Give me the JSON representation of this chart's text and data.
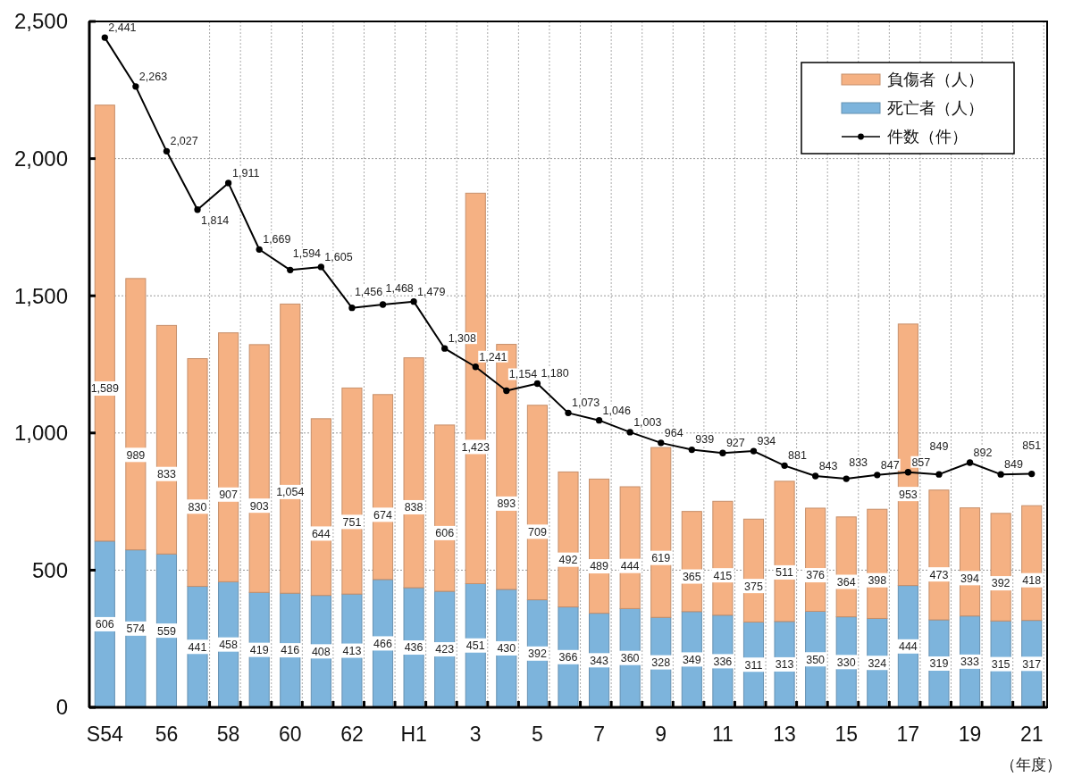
{
  "chart_data": {
    "type": "bar",
    "stacked": true,
    "xlabel": "（年度）",
    "categories": [
      "S54",
      null,
      "56",
      null,
      "58",
      null,
      "60",
      null,
      "62",
      null,
      "H1",
      null,
      "3",
      null,
      "5",
      null,
      "7",
      null,
      "9",
      null,
      "11",
      null,
      "13",
      null,
      "15",
      null,
      "17",
      null,
      "19",
      null,
      "21"
    ],
    "ylim": [
      0,
      2500
    ],
    "yticks": [
      0,
      500,
      {
        "value": 1000,
        "label": "1,000"
      },
      {
        "value": 1500,
        "label": "1,500"
      },
      {
        "value": 2000,
        "label": "2,000"
      },
      {
        "value": 2500,
        "label": "2,500"
      }
    ],
    "grid": true,
    "legend": "top right",
    "marker": "circle",
    "series": [
      {
        "name": "死亡者（人）",
        "color": "#7db4dc",
        "values": [
          606,
          574,
          559,
          441,
          458,
          419,
          416,
          408,
          413,
          466,
          436,
          423,
          451,
          430,
          392,
          366,
          343,
          360,
          328,
          349,
          336,
          311,
          313,
          350,
          330,
          324,
          444,
          319,
          333,
          315,
          317
        ],
        "value_labels": [
          "606",
          "574",
          "559",
          "441",
          "458",
          "419",
          "416",
          "408",
          "413",
          "466",
          "436",
          "423",
          "451",
          "430",
          "392",
          "366",
          "343",
          "360",
          "328",
          "349",
          "336",
          "311",
          "313",
          "350",
          "330",
          "324",
          "444",
          "319",
          "333",
          "315",
          "317"
        ]
      },
      {
        "name": "負傷者（人）",
        "color": "#f5b183",
        "values": [
          1589,
          989,
          833,
          830,
          907,
          903,
          1054,
          644,
          751,
          674,
          838,
          606,
          1423,
          893,
          709,
          492,
          489,
          444,
          619,
          365,
          415,
          375,
          511,
          376,
          364,
          398,
          953,
          473,
          394,
          392,
          418
        ],
        "value_labels": [
          "1,589",
          "989",
          "833",
          "830",
          "907",
          "903",
          "1,054",
          "644",
          "751",
          "674",
          "838",
          "606",
          "1,423",
          "893",
          "709",
          "492",
          "489",
          "444",
          "619",
          "365",
          "415",
          "375",
          "511",
          "376",
          "364",
          "398",
          "953",
          "473",
          "394",
          "392",
          "418"
        ]
      },
      {
        "name": "件数（件）",
        "type": "line",
        "color": "#000000",
        "values": [
          2441,
          2263,
          2027,
          1814,
          1911,
          1669,
          1594,
          1605,
          1456,
          1468,
          1479,
          1308,
          1241,
          1154,
          1180,
          1073,
          1046,
          1003,
          964,
          939,
          927,
          934,
          881,
          843,
          833,
          847,
          857,
          849,
          892,
          849,
          851
        ],
        "value_labels": [
          "2,441",
          "2,263",
          "2,027",
          "1,814",
          "1,911",
          "1,669",
          "1,594",
          "1,605",
          "1,456",
          "1,468",
          "1,479",
          "1,308",
          "1,241",
          "1,154",
          "1,180",
          "1,073",
          "1,046",
          "1,003",
          "964",
          "939",
          "927",
          "934",
          "881",
          "843",
          "833",
          "847",
          "857",
          "849",
          "892",
          "849",
          "851"
        ]
      }
    ]
  }
}
